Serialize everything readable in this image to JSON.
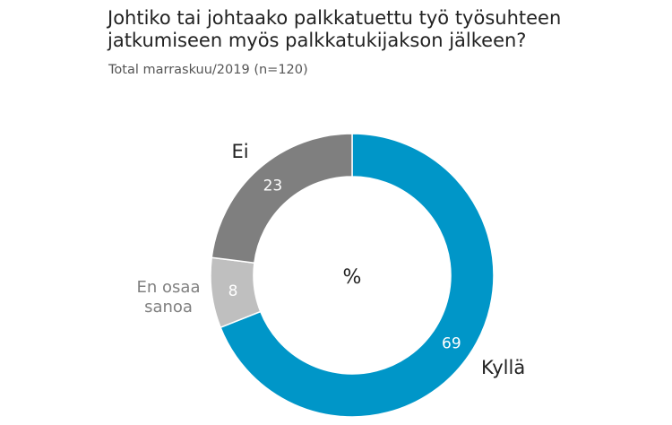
{
  "chart_data": {
    "type": "pie",
    "title": "Johtiko tai johtaako palkkatuettu työ työsuhteen jatkumiseen myös palkkatukijakson jälkeen?",
    "subtitle": "Total marraskuu/2019 (n=120)",
    "center_label": "%",
    "slices": [
      {
        "name": "Kyllä",
        "label_lines": [
          "Kyllä"
        ],
        "value": 69,
        "color": "#0096c8"
      },
      {
        "name": "En osaa sanoa",
        "label_lines": [
          "En osaa",
          "sanoa"
        ],
        "value": 8,
        "color": "#bfbfbf"
      },
      {
        "name": "Ei",
        "label_lines": [
          "Ei"
        ],
        "value": 23,
        "color": "#7f7f7f"
      }
    ]
  }
}
